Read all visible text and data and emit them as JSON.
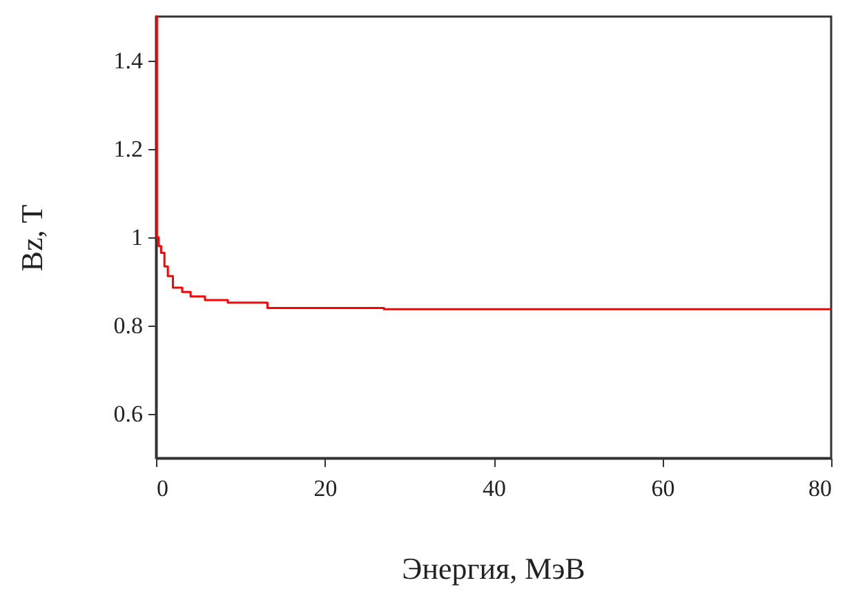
{
  "chart_data": {
    "type": "step",
    "xlabel": "Энергия, МэВ",
    "ylabel": "Bz, T",
    "x": [
      0,
      0.1,
      0.3,
      0.6,
      1.0,
      1.4,
      2.0,
      3.1,
      4.1,
      5.8,
      8.5,
      13.2,
      27,
      80
    ],
    "series": [
      {
        "color": "#ff0000",
        "values": [
          1.5,
          1.0,
          0.98,
          0.965,
          0.934,
          0.912,
          0.886,
          0.876,
          0.866,
          0.858,
          0.852,
          0.84,
          0.837,
          0.837
        ]
      }
    ],
    "xlim": [
      0,
      80
    ],
    "xticks": [
      0,
      20,
      40,
      60,
      80
    ],
    "ylim": [
      0.5,
      1.5
    ],
    "yticks": [
      0.6,
      0.8,
      1,
      1.2,
      1.4
    ],
    "grid": false
  }
}
